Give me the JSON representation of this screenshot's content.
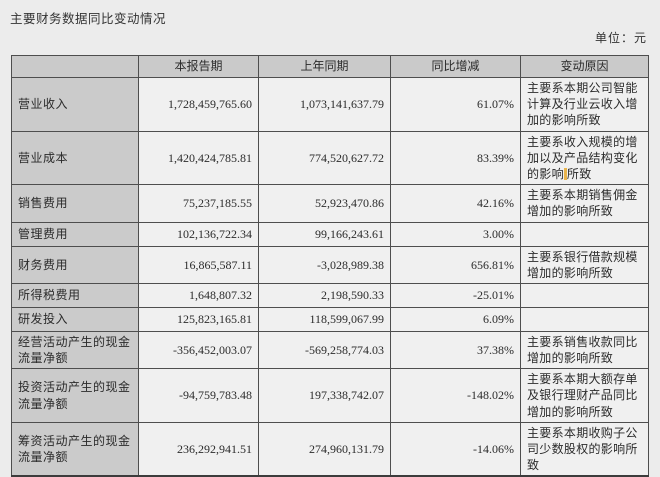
{
  "page": {
    "title": "主要财务数据同比变动情况",
    "unit_label": "单位：元"
  },
  "colors": {
    "page_background": "#ececec",
    "header_gray": "#cacaca",
    "cell_light": "#f0f0f0",
    "border": "#4e4e4e",
    "caret_highlight": "#e9b44c"
  },
  "table": {
    "headers": [
      "",
      "本报告期",
      "上年同期",
      "同比增减",
      "变动原因"
    ],
    "rows": [
      {
        "label": "营业收入",
        "current": "1,728,459,765.60",
        "prior": "1,073,141,637.79",
        "change": "61.07%",
        "reason": "主要系本期公司智能计算及行业云收入增加的影响所致",
        "size": "h1"
      },
      {
        "label": "营业成本",
        "current": "1,420,424,785.81",
        "prior": "774,520,627.72",
        "change": "83.39%",
        "reason": "主要系收入规模的增加以及产品结构变化的影响所致",
        "caret_index": 21,
        "size": "h1"
      },
      {
        "label": "销售费用",
        "current": "75,237,185.55",
        "prior": "52,923,470.86",
        "change": "42.16%",
        "reason": "主要系本期销售佣金增加的影响所致",
        "size": "h2"
      },
      {
        "label": "管理费用",
        "current": "102,136,722.34",
        "prior": "99,166,243.61",
        "change": "3.00%",
        "reason": "",
        "size": "h3"
      },
      {
        "label": "财务费用",
        "current": "16,865,587.11",
        "prior": "-3,028,989.38",
        "change": "656.81%",
        "reason": "主要系银行借款规模增加的影响所致",
        "size": "h2"
      },
      {
        "label": "所得税费用",
        "current": "1,648,807.32",
        "prior": "2,198,590.33",
        "change": "-25.01%",
        "reason": "",
        "size": "h3"
      },
      {
        "label": "研发投入",
        "current": "125,823,165.81",
        "prior": "118,599,067.99",
        "change": "6.09%",
        "reason": "",
        "size": "h3"
      },
      {
        "label": "经营活动产生的现金流量净额",
        "current": "-356,452,003.07",
        "prior": "-569,258,774.03",
        "change": "37.38%",
        "reason": "主要系销售收款同比增加的影响所致",
        "size": "h2"
      },
      {
        "label": "投资活动产生的现金流量净额",
        "current": "-94,759,783.48",
        "prior": "197,338,742.07",
        "change": "-148.02%",
        "reason": "主要系本期大额存单及银行理财产品同比增加的影响所致",
        "size": "h1"
      },
      {
        "label": "筹资活动产生的现金流量净额",
        "current": "236,292,941.51",
        "prior": "274,960,131.79",
        "change": "-14.06%",
        "reason": "主要系本期收购子公司少数股权的影响所致",
        "size": "h1"
      }
    ]
  }
}
